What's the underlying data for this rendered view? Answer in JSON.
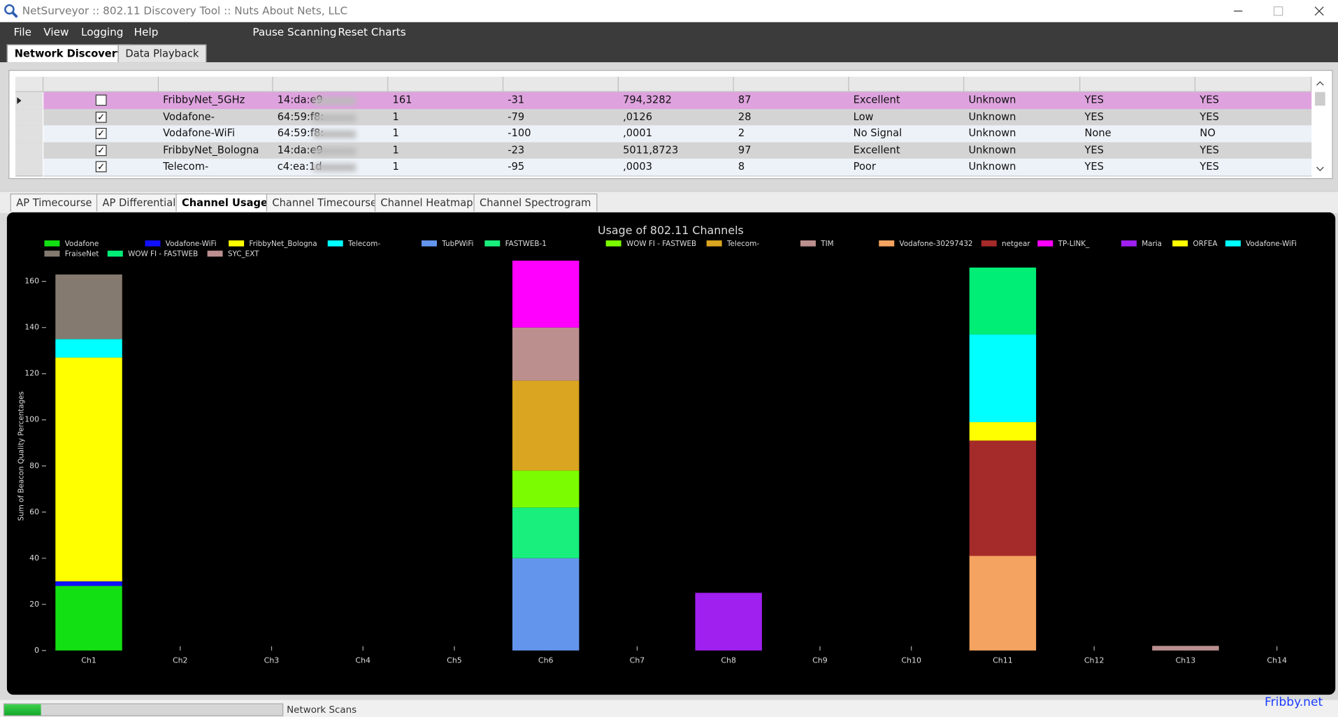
{
  "window": {
    "title": "NetSurveyor :: 802.11 Discovery Tool :: Nuts About Nets, LLC"
  },
  "menu": [
    "File",
    "View",
    "Logging",
    "Help",
    "Pause Scanning",
    "Reset Charts"
  ],
  "top_tabs": {
    "items": [
      "Network Discovery",
      "Data Playback"
    ],
    "active": 0
  },
  "table": {
    "selected_row": 0,
    "rows": [
      {
        "checked": false,
        "cells": [
          "FribbyNet_5GHz",
          "14:da:e9",
          "161",
          "-31",
          "794,3282",
          "87",
          "Excellent",
          "Unknown",
          "YES",
          "YES"
        ]
      },
      {
        "checked": true,
        "cells": [
          "Vodafone-",
          "64:59:f8:",
          "1",
          "-79",
          ",0126",
          "28",
          "Low",
          "Unknown",
          "YES",
          "YES"
        ]
      },
      {
        "checked": true,
        "cells": [
          "Vodafone-WiFi",
          "64:59:f8:",
          "1",
          "-100",
          ",0001",
          "2",
          "No Signal",
          "Unknown",
          "None",
          "NO"
        ]
      },
      {
        "checked": true,
        "cells": [
          "FribbyNet_Bologna",
          "14:da:e9",
          "1",
          "-23",
          "5011,8723",
          "97",
          "Excellent",
          "Unknown",
          "YES",
          "YES"
        ]
      },
      {
        "checked": true,
        "cells": [
          "Telecom-",
          "c4:ea:1d",
          "1",
          "-95",
          ",0003",
          "8",
          "Poor",
          "Unknown",
          "YES",
          "YES"
        ]
      }
    ]
  },
  "chart_tabs": {
    "items": [
      "AP Timecourse",
      "AP Differential",
      "Channel Usage",
      "Channel Timecourse",
      "Channel Heatmap",
      "Channel Spectrogram"
    ],
    "active": 2
  },
  "chart_data": {
    "type": "stacked_bar",
    "title": "Usage of 802.11 Channels",
    "y_label": "Sum of Beacon Quality Percentages",
    "categories": [
      "Ch1",
      "Ch2",
      "Ch3",
      "Ch4",
      "Ch5",
      "Ch6",
      "Ch7",
      "Ch8",
      "Ch9",
      "Ch10",
      "Ch11",
      "Ch12",
      "Ch13",
      "Ch14"
    ],
    "ylim": [
      0,
      170
    ],
    "yticks": [
      0,
      20,
      40,
      60,
      80,
      100,
      120,
      140,
      160
    ],
    "legend": "top",
    "series": [
      {
        "name": "Vodafone",
        "color": "#13e013",
        "values": [
          28,
          null,
          null,
          null,
          null,
          null,
          null,
          null,
          null,
          null,
          null,
          null,
          null,
          null
        ]
      },
      {
        "name": "Vodafone-WiFi",
        "color": "#1010ff",
        "values": [
          2,
          null,
          null,
          null,
          null,
          null,
          null,
          null,
          null,
          null,
          null,
          null,
          null,
          null
        ]
      },
      {
        "name": "FribbyNet_Bologna",
        "color": "#ffff00",
        "values": [
          97,
          null,
          null,
          null,
          null,
          null,
          null,
          null,
          null,
          null,
          null,
          null,
          null,
          null
        ]
      },
      {
        "name": "Telecom-",
        "color": "#00ffff",
        "values": [
          8,
          null,
          null,
          null,
          null,
          null,
          null,
          null,
          null,
          null,
          null,
          null,
          null,
          null
        ]
      },
      {
        "name": "TubPWiFi",
        "color": "#6495ed",
        "values": [
          null,
          null,
          null,
          null,
          null,
          40,
          null,
          null,
          null,
          null,
          null,
          null,
          null,
          null
        ]
      },
      {
        "name": "FASTWEB-1",
        "color": "#19ef7d",
        "values": [
          null,
          null,
          null,
          null,
          null,
          22,
          null,
          null,
          null,
          null,
          null,
          null,
          null,
          null
        ]
      },
      {
        "name": "WOW FI - FASTWEB",
        "color": "#7cfc00",
        "values": [
          null,
          null,
          null,
          null,
          null,
          16,
          null,
          null,
          null,
          null,
          null,
          null,
          null,
          null
        ]
      },
      {
        "name": "Telecom-",
        "color": "#daa520",
        "values": [
          null,
          null,
          null,
          null,
          null,
          39,
          null,
          null,
          null,
          null,
          null,
          null,
          null,
          null
        ]
      },
      {
        "name": "TIM",
        "color": "#bc8f8f",
        "values": [
          null,
          null,
          null,
          null,
          null,
          23,
          null,
          null,
          null,
          null,
          null,
          null,
          null,
          null
        ]
      },
      {
        "name": "Vodafone-30297432",
        "color": "#f4a460",
        "values": [
          null,
          null,
          null,
          null,
          null,
          null,
          null,
          null,
          null,
          null,
          41,
          null,
          null,
          null
        ]
      },
      {
        "name": "netgear",
        "color": "#a52a2a",
        "values": [
          null,
          null,
          null,
          null,
          null,
          null,
          null,
          null,
          null,
          null,
          50,
          null,
          null,
          null
        ]
      },
      {
        "name": "TP-LINK_",
        "color": "#ff00ff",
        "values": [
          null,
          null,
          null,
          null,
          null,
          29,
          null,
          null,
          null,
          null,
          null,
          null,
          null,
          null
        ]
      },
      {
        "name": "Maria",
        "color": "#a020f0",
        "values": [
          null,
          null,
          null,
          null,
          null,
          null,
          null,
          25,
          null,
          null,
          null,
          null,
          null,
          null
        ]
      },
      {
        "name": "ORFEA",
        "color": "#ffff00",
        "values": [
          null,
          null,
          null,
          null,
          null,
          null,
          null,
          null,
          null,
          null,
          8,
          null,
          null,
          null
        ]
      },
      {
        "name": "Vodafone-WiFi",
        "color": "#00ffff",
        "values": [
          null,
          null,
          null,
          null,
          null,
          null,
          null,
          null,
          null,
          null,
          38,
          null,
          null,
          null
        ]
      },
      {
        "name": "FraiseNet",
        "color": "#857a6f",
        "values": [
          28,
          null,
          null,
          null,
          null,
          null,
          null,
          null,
          null,
          null,
          null,
          null,
          null,
          null
        ]
      },
      {
        "name": "WOW FI - FASTWEB",
        "color": "#00ee76",
        "values": [
          null,
          null,
          null,
          null,
          null,
          null,
          null,
          null,
          null,
          null,
          29,
          null,
          null,
          null
        ]
      },
      {
        "name": "SYC_EXT",
        "color": "#bc8f8f",
        "values": [
          null,
          null,
          null,
          null,
          null,
          null,
          null,
          null,
          null,
          null,
          null,
          null,
          2,
          null
        ]
      }
    ]
  },
  "status": {
    "label": "Network Scans",
    "link": "Fribby.net"
  }
}
